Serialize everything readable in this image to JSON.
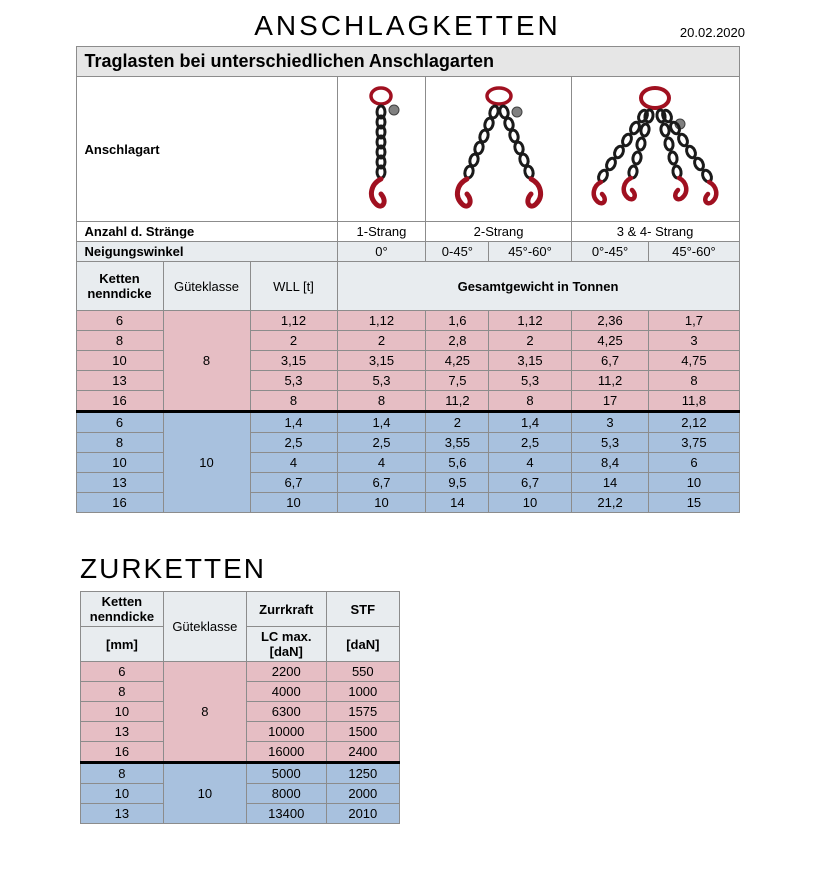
{
  "title1": "ANSCHLAGKETTEN",
  "date": "20.02.2020",
  "subtitle": "Traglasten bei unterschiedlichen Anschlagarten",
  "rowLabels": {
    "anschlagart": "Anschlagart",
    "anzahl": "Anzahl d. Stränge",
    "neigung": "Neigungswinkel",
    "ketten": "Ketten nenndicke",
    "gueteklasse": "Güteklasse",
    "wll": "WLL [t]",
    "gesamt": "Gesamtgewicht in Tonnen",
    "mm": "[mm]",
    "zurrkraft": "Zurrkraft",
    "stf": "STF",
    "lcmax": "LC max. [daN]",
    "dan": "[daN]"
  },
  "strands": [
    "1-Strang",
    "2-Strang",
    "3 & 4- Strang"
  ],
  "angles": [
    "0°",
    "0-45°",
    "45°-60°",
    "0°-45°",
    "45°-60°"
  ],
  "colors": {
    "pink": "#e6bec4",
    "blue": "#a8c1de",
    "grey": "#e8ecef",
    "border": "#8c8c8c",
    "chain_dark": "#1a1a1a",
    "chain_red": "#a01020"
  },
  "table1": {
    "group8": {
      "klasse": "8",
      "rows": [
        {
          "d": "6",
          "v": [
            "1,12",
            "1,12",
            "1,6",
            "1,12",
            "2,36",
            "1,7"
          ]
        },
        {
          "d": "8",
          "v": [
            "2",
            "2",
            "2,8",
            "2",
            "4,25",
            "3"
          ]
        },
        {
          "d": "10",
          "v": [
            "3,15",
            "3,15",
            "4,25",
            "3,15",
            "6,7",
            "4,75"
          ]
        },
        {
          "d": "13",
          "v": [
            "5,3",
            "5,3",
            "7,5",
            "5,3",
            "11,2",
            "8"
          ]
        },
        {
          "d": "16",
          "v": [
            "8",
            "8",
            "11,2",
            "8",
            "17",
            "11,8"
          ]
        }
      ]
    },
    "group10": {
      "klasse": "10",
      "rows": [
        {
          "d": "6",
          "v": [
            "1,4",
            "1,4",
            "2",
            "1,4",
            "3",
            "2,12"
          ]
        },
        {
          "d": "8",
          "v": [
            "2,5",
            "2,5",
            "3,55",
            "2,5",
            "5,3",
            "3,75"
          ]
        },
        {
          "d": "10",
          "v": [
            "4",
            "4",
            "5,6",
            "4",
            "8,4",
            "6"
          ]
        },
        {
          "d": "13",
          "v": [
            "6,7",
            "6,7",
            "9,5",
            "6,7",
            "14",
            "10"
          ]
        },
        {
          "d": "16",
          "v": [
            "10",
            "10",
            "14",
            "10",
            "21,2",
            "15"
          ]
        }
      ]
    }
  },
  "title2": "ZURKETTEN",
  "table2": {
    "group8": {
      "klasse": "8",
      "rows": [
        {
          "d": "6",
          "lc": "2200",
          "stf": "550"
        },
        {
          "d": "8",
          "lc": "4000",
          "stf": "1000"
        },
        {
          "d": "10",
          "lc": "6300",
          "stf": "1575"
        },
        {
          "d": "13",
          "lc": "10000",
          "stf": "1500"
        },
        {
          "d": "16",
          "lc": "16000",
          "stf": "2400"
        }
      ]
    },
    "group10": {
      "klasse": "10",
      "rows": [
        {
          "d": "8",
          "lc": "5000",
          "stf": "1250"
        },
        {
          "d": "10",
          "lc": "8000",
          "stf": "2000"
        },
        {
          "d": "13",
          "lc": "13400",
          "stf": "2010"
        }
      ]
    }
  }
}
